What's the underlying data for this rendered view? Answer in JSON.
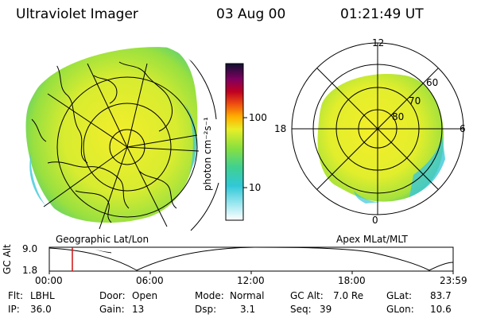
{
  "header": {
    "instrument": "Ultraviolet Imager",
    "date": "03 Aug 00",
    "time": "01:21:49 UT"
  },
  "colorbar": {
    "unit_label": "photon cm⁻²s⁻¹",
    "ticks": [
      "100",
      "10"
    ],
    "scale": "log"
  },
  "left_map": {
    "caption": "Geographic Lat/Lon"
  },
  "right_map": {
    "caption": "Apex MLat/MLT",
    "mlt_labels": [
      "12",
      "18",
      "6",
      "0"
    ],
    "mlat_labels": [
      "60",
      "70",
      "80"
    ]
  },
  "altitude_plot": {
    "ylabel": "GC Alt",
    "yticks": [
      "9.0",
      "1.8"
    ],
    "xticks": [
      "00:00",
      "06:00",
      "12:00",
      "18:00",
      "23:59"
    ],
    "marker_time": "01:21"
  },
  "info": {
    "col1": [
      {
        "key": "Flt:",
        "value": "LBHL"
      },
      {
        "key": "IP:",
        "value": "36.0"
      }
    ],
    "col2": [
      {
        "key": "Door:",
        "value": "Open"
      },
      {
        "key": "Gain:",
        "value": "13"
      }
    ],
    "col3": [
      {
        "key": "Mode:",
        "value": "Normal"
      },
      {
        "key": "Dsp:",
        "value": "3.1"
      }
    ],
    "col4": [
      {
        "key": "GC Alt:",
        "value": "7.0 Re"
      },
      {
        "key": "Seq:",
        "value": "39"
      }
    ],
    "col5": [
      {
        "key": "GLat:",
        "value": "83.7"
      },
      {
        "key": "GLon:",
        "value": "10.6"
      }
    ]
  },
  "colors": {
    "aurora_yellow": "#f2ee2a",
    "aurora_green": "#8fe040",
    "aurora_cyan": "#3cc8d8",
    "marker_red": "#d01010"
  }
}
